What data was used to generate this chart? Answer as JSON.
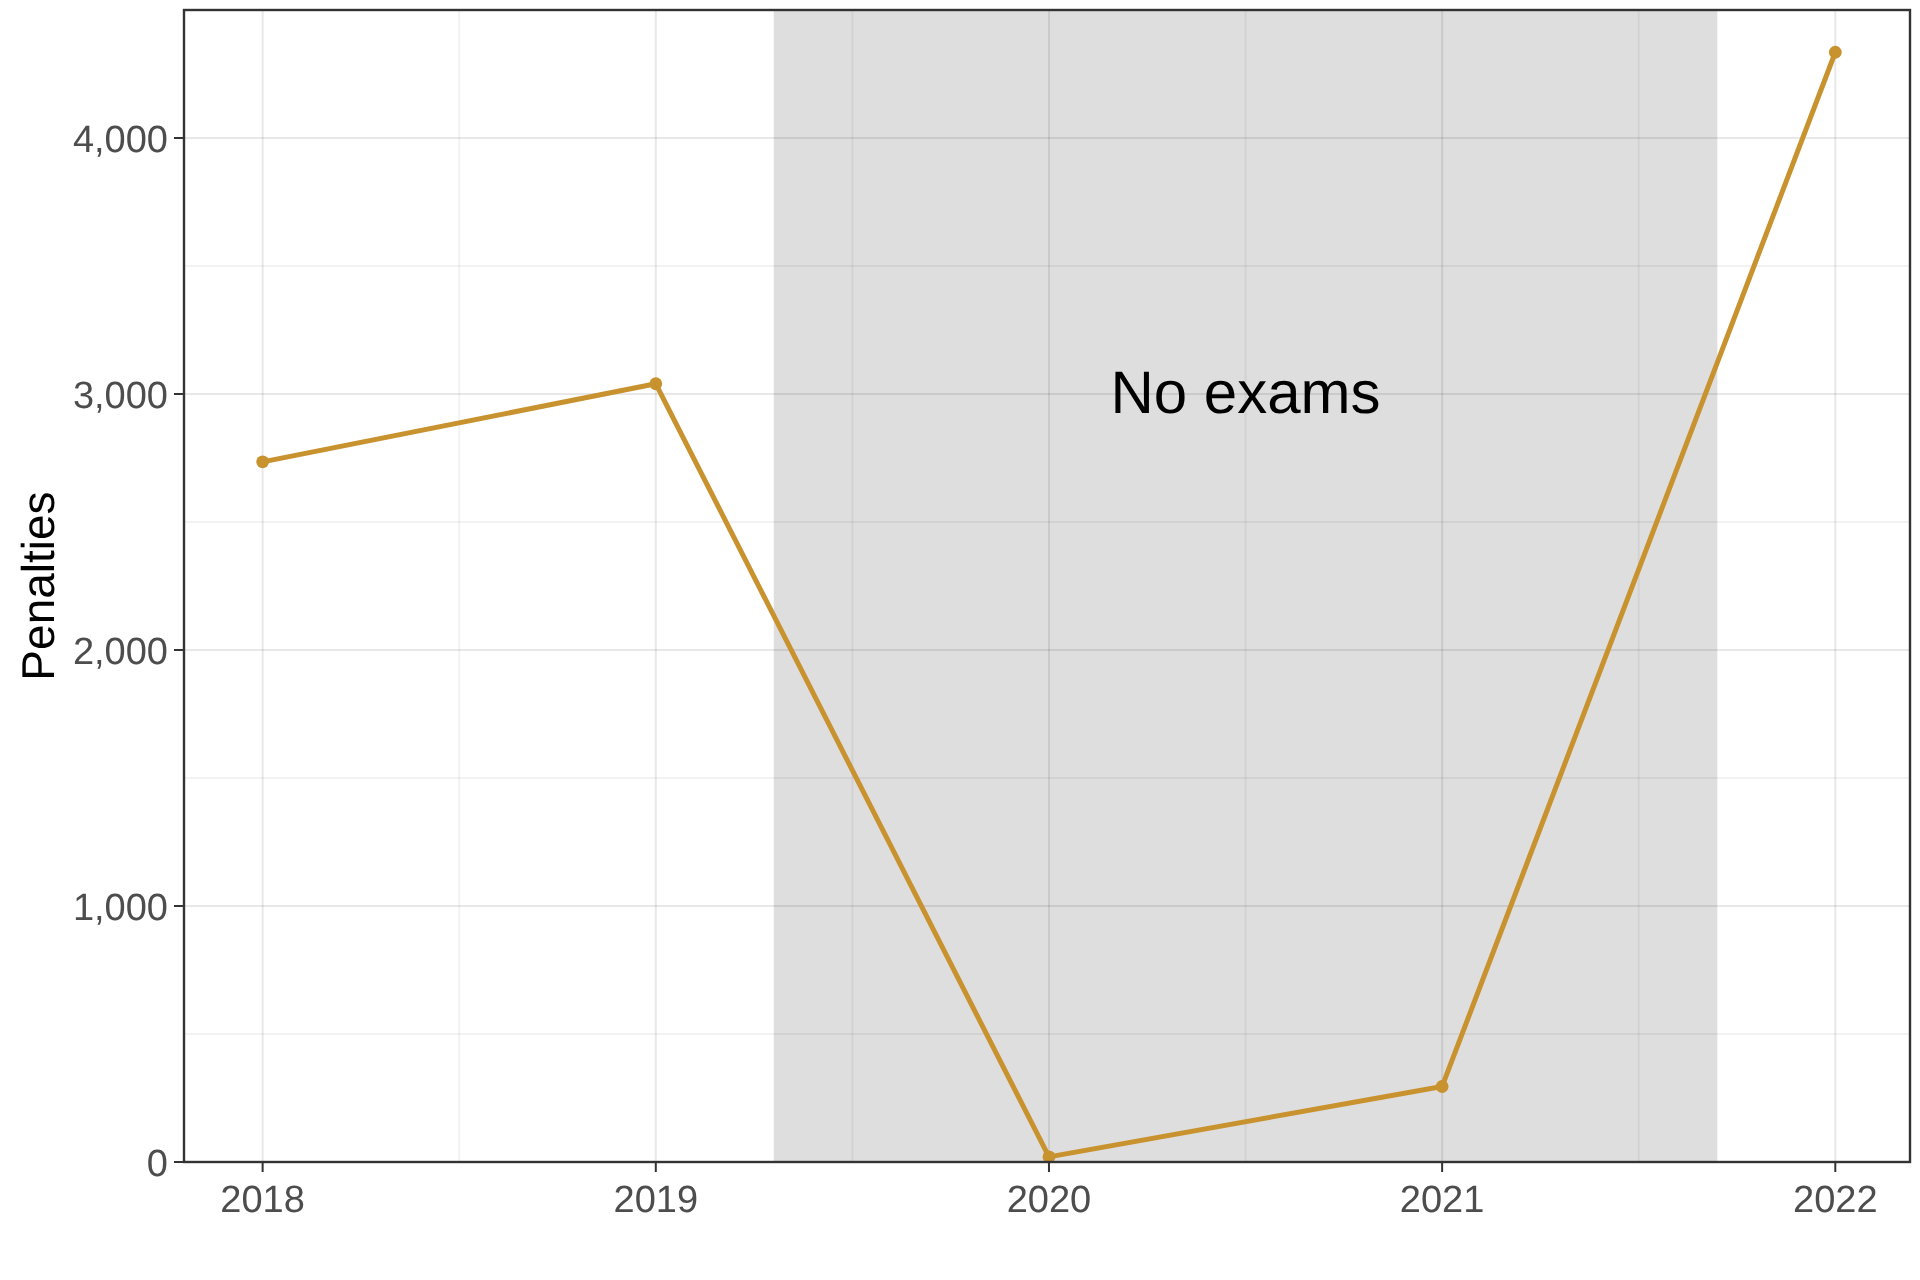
{
  "chart_data": {
    "type": "line",
    "ylabel": "Penalties",
    "x": [
      2018,
      2019,
      2020,
      2021,
      2022
    ],
    "series": [
      {
        "color": "#c8922e",
        "values": [
          2735,
          3040,
          20,
          295,
          4335
        ]
      }
    ],
    "xlim": [
      2017.8,
      2022.19
    ],
    "xticks": [
      2018,
      2019,
      2020,
      2021,
      2022
    ],
    "ylim": [
      0,
      4500
    ],
    "yticks": [
      {
        "value": 0,
        "label": "0"
      },
      {
        "value": 1000,
        "label": "1,000"
      },
      {
        "value": 2000,
        "label": "2,000"
      },
      {
        "value": 3000,
        "label": "3,000"
      },
      {
        "value": 4000,
        "label": "4,000"
      }
    ],
    "bands": [
      {
        "axis": "x",
        "from": 2019.3,
        "to": 2021.7,
        "label": "No exams",
        "color": "#dedede"
      }
    ],
    "grid": true,
    "marker": "circle",
    "line_style": "solid"
  }
}
